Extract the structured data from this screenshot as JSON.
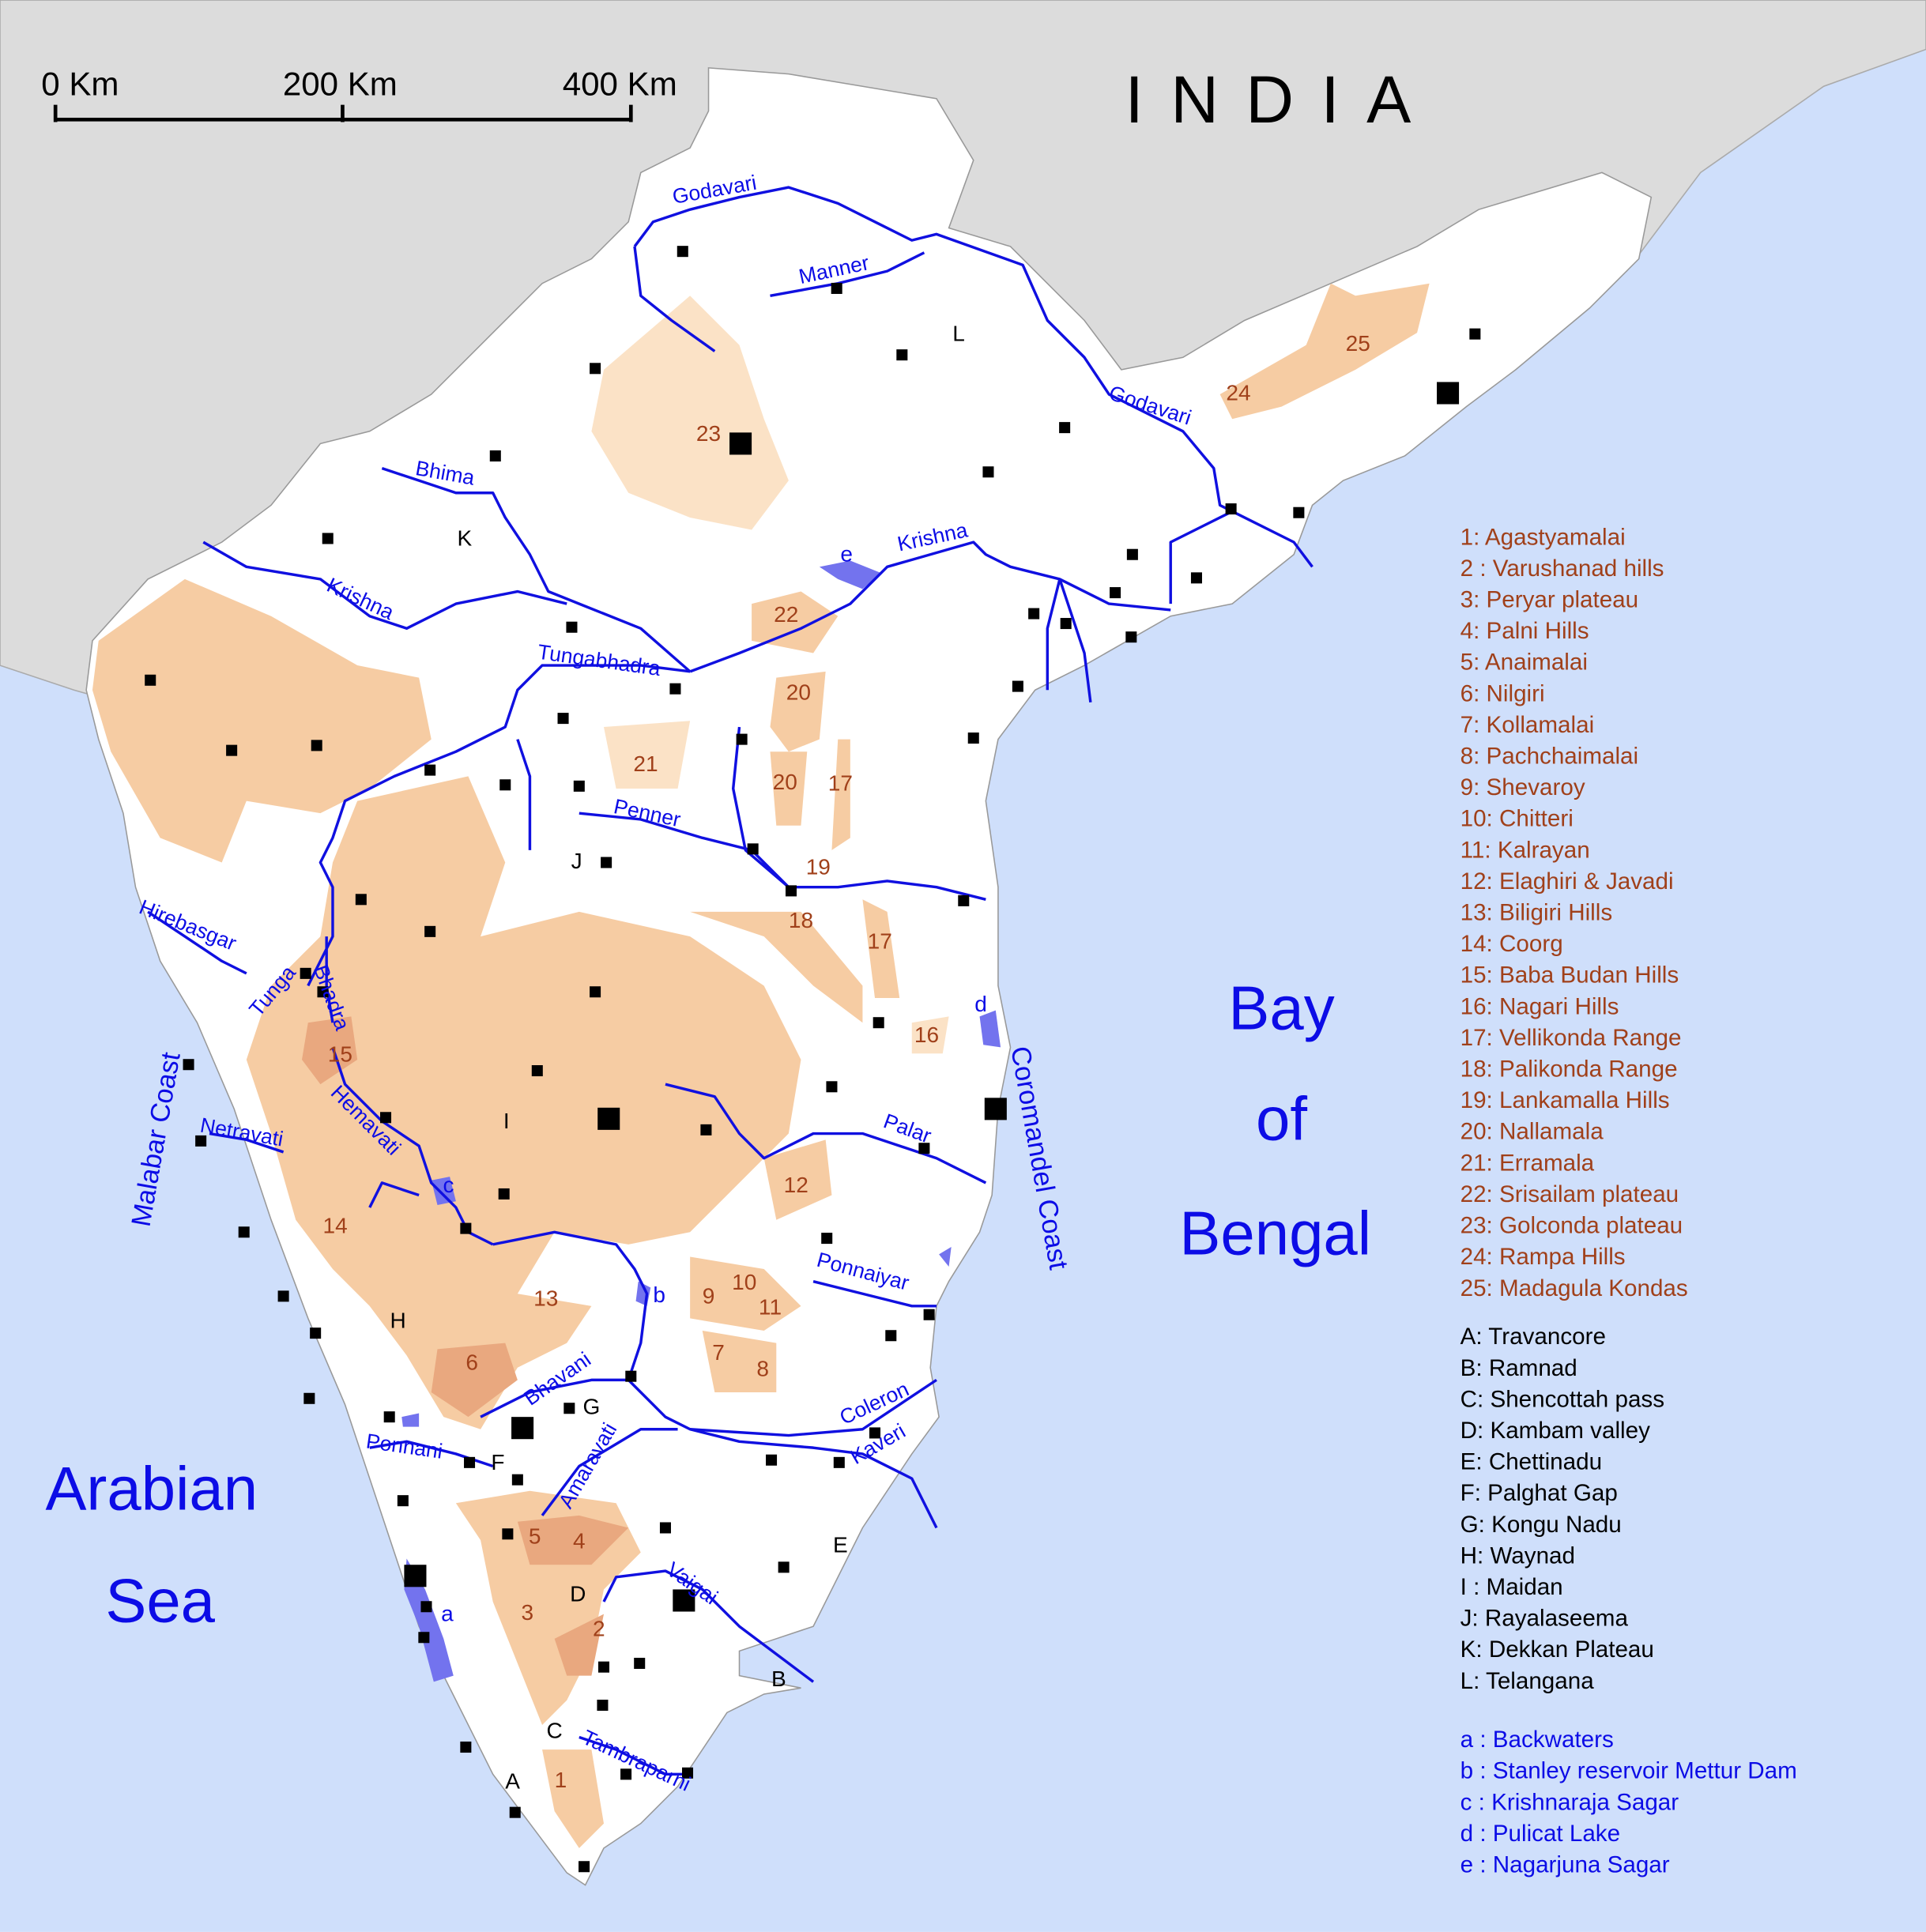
{
  "scale_bar": {
    "labels": [
      "0 Km",
      "200 Km",
      "400 Km"
    ]
  },
  "country": "INDIA",
  "seas": {
    "bay_of_bengal": [
      "Bay",
      "of",
      "Bengal"
    ],
    "arabian_sea": [
      "Arabian",
      "Sea"
    ]
  },
  "coasts": [
    "Malabar Coast",
    "Coromandel Coast"
  ],
  "rivers": [
    "Godavari",
    "Manner",
    "Godavari",
    "Bhima",
    "Krishna",
    "Krishna",
    "Tungabhadra",
    "Penner",
    "Hirebasgar",
    "Tunga",
    "Bhadra",
    "Netravati",
    "Hemavati",
    "Palar",
    "Ponnaiyar",
    "Bhavani",
    "Ponnani",
    "Amaravati",
    "Coleron",
    "Kaveri",
    "Vaigai",
    "Tambraparni"
  ],
  "hill_labels": [
    "25",
    "24",
    "23",
    "22",
    "20",
    "21",
    "20",
    "17",
    "19",
    "18",
    "17",
    "16",
    "15",
    "14",
    "12",
    "13",
    "9",
    "10",
    "11",
    "7",
    "8",
    "6",
    "5",
    "4",
    "3",
    "2",
    "1"
  ],
  "region_labels": [
    "L",
    "K",
    "J",
    "I",
    "H",
    "G",
    "F",
    "E",
    "D",
    "C",
    "B",
    "A"
  ],
  "water_labels": [
    "e",
    "d",
    "c",
    "b",
    "a"
  ],
  "legend": {
    "hills": [
      "1: Agastyamalai",
      "2 : Varushanad hills",
      "3: Peryar plateau",
      "4: Palni Hills",
      "5: Anaimalai",
      "6: Nilgiri",
      "7: Kollamalai",
      "8: Pachchaimalai",
      "9: Shevaroy",
      "10: Chitteri",
      "11: Kalrayan",
      "12: Elaghiri & Javadi",
      "13: Biligiri Hills",
      "14: Coorg",
      "15: Baba Budan Hills",
      "16: Nagari Hills",
      "17: Vellikonda Range",
      "18: Palikonda Range",
      "19: Lankamalla Hills",
      "20: Nallamala",
      "21: Erramala",
      "22: Srisailam plateau",
      "23: Golconda plateau",
      "24: Rampa Hills",
      "25: Madagula Kondas"
    ],
    "regions": [
      "A: Travancore",
      "B: Ramnad",
      "C: Shencottah pass",
      "D: Kambam valley",
      "E: Chettinadu",
      "F: Palghat Gap",
      "G: Kongu Nadu",
      "H: Waynad",
      "I : Maidan",
      "J: Rayalaseema",
      "K: Dekkan Plateau",
      "L: Telangana"
    ],
    "water": [
      "a : Backwaters",
      "b : Stanley reservoir Mettur Dam",
      "c : Krishnaraja Sagar",
      "d : Pulicat Lake",
      "e : Nagarjuna Sagar"
    ]
  }
}
